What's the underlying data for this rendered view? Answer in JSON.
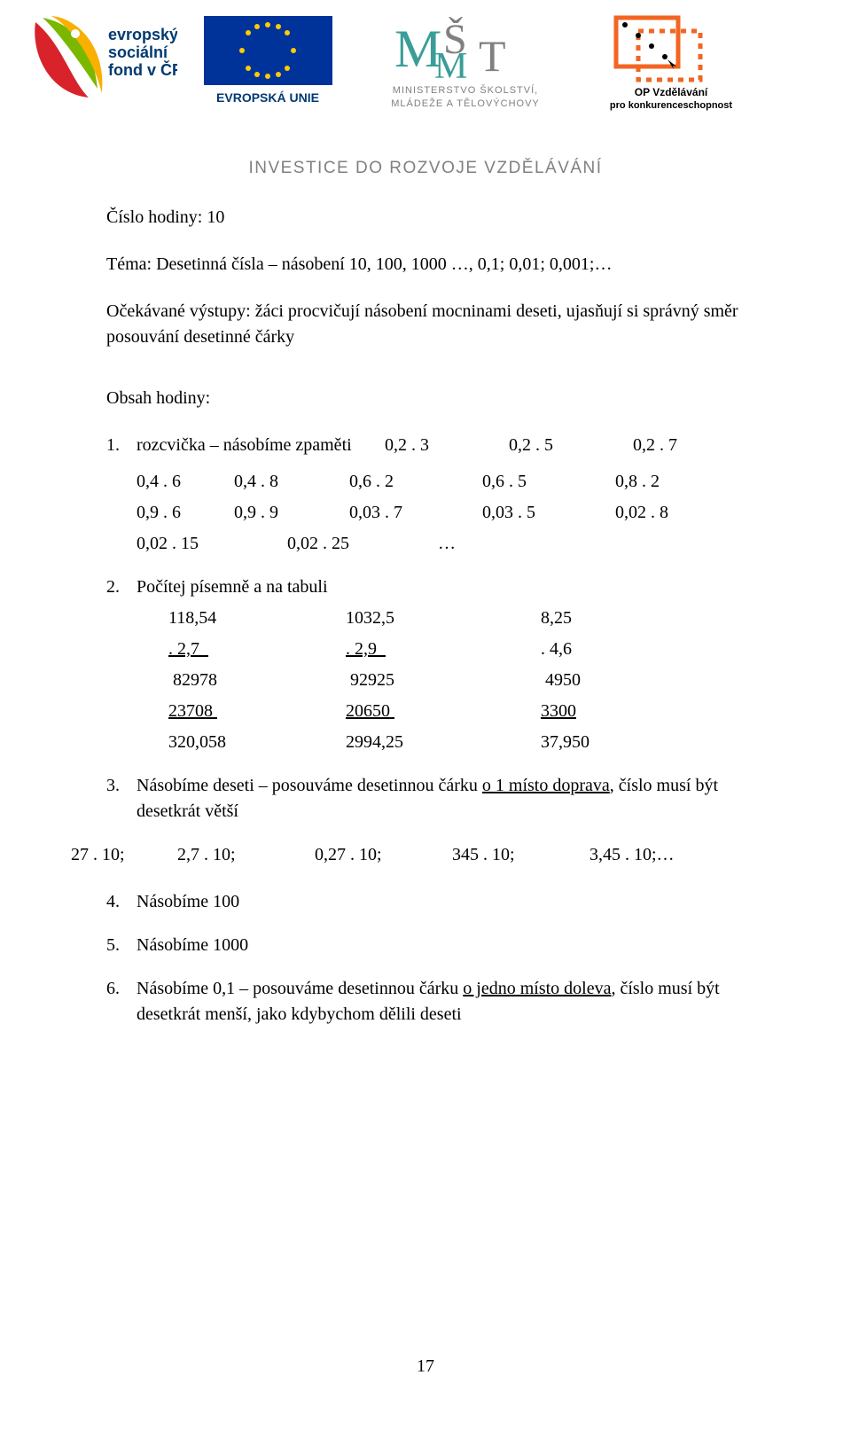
{
  "header": {
    "esf_text1": "evropský",
    "esf_text2": "sociální",
    "esf_text3": "fond v ČR",
    "eu_text": "EVROPSKÁ UNIE",
    "msmt_line1": "MINISTERSTVO ŠKOLSTVÍ,",
    "msmt_line2": "MLÁDEŽE A TĚLOVÝCHOVY",
    "op_line1": "OP Vzdělávání",
    "op_line2": "pro konkurenceschopnost",
    "investice": "INVESTICE DO ROZVOJE VZDĚLÁVÁNÍ"
  },
  "lesson": {
    "cislo_hodiny": "Číslo hodiny: 10",
    "tema": "Téma: Desetinná čísla – násobení 10, 100, 1000 …, 0,1; 0,01; 0,001;…",
    "ocekavane": "Očekávané výstupy: žáci procvičují násobení mocninami deseti, ujasňují si správný směr posouvání desetinné čárky",
    "obsah": "Obsah hodiny:"
  },
  "item1": {
    "num": "1.",
    "text": "rozcvička – násobíme zpaměti",
    "r1": [
      "0,2 . 3",
      "0,2 . 5",
      "0,2 . 7"
    ],
    "rows": [
      [
        "0,4 . 6",
        "0,4 . 8",
        "0,6 . 2",
        "0,6 . 5",
        "0,8 . 2"
      ],
      [
        "0,9 . 6",
        "0,9 . 9",
        "0,03 . 7",
        "0,03 . 5",
        "0,02 . 8"
      ]
    ],
    "last": [
      "0,02 . 15",
      "0,02 . 25",
      "…"
    ]
  },
  "item2": {
    "num": "2.",
    "text": "Počítej písemně a na tabuli",
    "rows": [
      {
        "c1": "118,54",
        "c2": "1032,5",
        "c3": "8,25",
        "u": [
          false,
          false,
          false
        ]
      },
      {
        "c1": ". 2,7  ",
        "c2": ". 2,9  ",
        "c3": ". 4,6",
        "u": [
          true,
          true,
          false
        ]
      },
      {
        "c1": " 82978",
        "c2": " 92925",
        "c3": " 4950",
        "u": [
          false,
          false,
          false
        ]
      },
      {
        "c1": "23708 ",
        "c2": "20650 ",
        "c3": "3300",
        "u": [
          true,
          true,
          true
        ]
      },
      {
        "c1": "320,058",
        "c2": "2994,25",
        "c3": "37,950",
        "u": [
          false,
          false,
          false
        ]
      }
    ]
  },
  "item3": {
    "num": "3.",
    "text_a": "Násobíme deseti – posouváme desetinnou čárku ",
    "text_u": "o 1 místo doprava",
    "text_b": ", číslo musí být desetkrát větší"
  },
  "line27": {
    "cells": [
      "27 . 10;",
      "2,7 . 10;",
      "0,27 . 10;",
      "345 . 10;",
      "3,45 . 10;…"
    ]
  },
  "item4": {
    "num": "4.",
    "text": "Násobíme 100"
  },
  "item5": {
    "num": "5.",
    "text": "Násobíme 1000"
  },
  "item6": {
    "num": "6.",
    "text_a": "Násobíme 0,1 – posouváme desetinnou čárku ",
    "text_u": "o jedno místo doleva",
    "text_b": ", číslo musí být desetkrát menší, jako kdybychom dělili deseti"
  },
  "page_number": "17",
  "colors": {
    "esf_red": "#d8232a",
    "esf_green": "#7ab800",
    "eu_blue": "#003399",
    "eu_gold": "#ffcc00",
    "msmt_teal": "#3a9d98",
    "op_orange": "#f26522",
    "grey": "#808080"
  }
}
